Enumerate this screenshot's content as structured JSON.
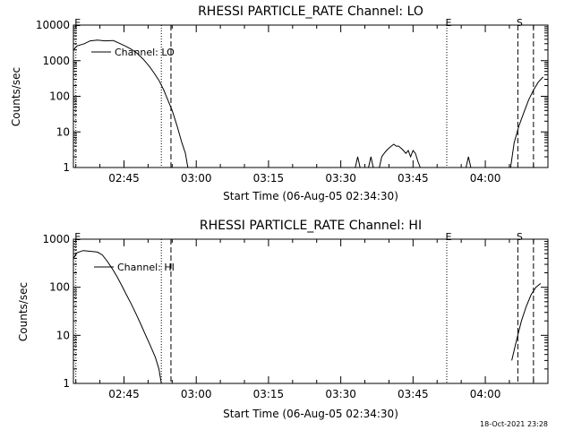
{
  "footer": {
    "timestamp": "18-Oct-2021 23:28"
  },
  "chart_data": [
    {
      "type": "line",
      "title": "RHESSI PARTICLE_RATE Channel: LO",
      "xlabel": "Start Time (06-Aug-05 02:34:30)",
      "ylabel": "Counts/sec",
      "y_scale": "log",
      "ylim": [
        1,
        10000
      ],
      "xlim": [
        "02:34:30",
        "04:13:00"
      ],
      "x_ticks": [
        "02:45",
        "03:00",
        "03:15",
        "03:30",
        "03:45",
        "04:00"
      ],
      "y_ticks": [
        "1",
        "10",
        "100",
        "1000",
        "10000"
      ],
      "legend": {
        "label": "Channel: LO",
        "placement": "top-left"
      },
      "markers": [
        {
          "label": "E",
          "time": "02:35:00",
          "style": "dotted"
        },
        {
          "label": "",
          "time": "02:52:45",
          "style": "dotted"
        },
        {
          "label": "",
          "time": "02:54:45",
          "style": "dashed"
        },
        {
          "label": "E",
          "time": "03:52:00",
          "style": "dotted"
        },
        {
          "label": "S",
          "time": "04:06:45",
          "style": "dashed"
        },
        {
          "label": "",
          "time": "04:10:00",
          "style": "dashed"
        }
      ],
      "series": [
        {
          "segments": [
            [
              [
                "02:34:30",
                2000
              ],
              [
                "02:35:15",
                2600
              ],
              [
                "02:36:45",
                3000
              ],
              [
                "02:38:00",
                3600
              ],
              [
                "02:39:30",
                3800
              ],
              [
                "02:41:00",
                3600
              ],
              [
                "02:42:45",
                3700
              ],
              [
                "02:44:00",
                3100
              ],
              [
                "02:45:15",
                2600
              ],
              [
                "02:46:30",
                2100
              ],
              [
                "02:47:45",
                1600
              ],
              [
                "02:49:00",
                1100
              ],
              [
                "02:50:15",
                700
              ],
              [
                "02:51:15",
                450
              ],
              [
                "02:52:15",
                280
              ],
              [
                "02:53:15",
                150
              ],
              [
                "02:54:00",
                85
              ],
              [
                "02:55:00",
                40
              ],
              [
                "02:56:00",
                15
              ],
              [
                "02:57:00",
                5
              ],
              [
                "02:57:45",
                2.5
              ],
              [
                "02:58:15",
                1
              ]
            ],
            [
              [
                "03:33:00",
                1
              ],
              [
                "03:33:30",
                2
              ],
              [
                "03:34:00",
                1
              ]
            ],
            [
              [
                "03:35:45",
                1
              ],
              [
                "03:36:15",
                2
              ],
              [
                "03:36:45",
                1
              ]
            ],
            [
              [
                "03:38:00",
                1
              ],
              [
                "03:38:30",
                2
              ],
              [
                "03:39:00",
                2.5
              ],
              [
                "03:39:30",
                3
              ],
              [
                "03:40:00",
                3.5
              ],
              [
                "03:40:30",
                4
              ],
              [
                "03:41:00",
                4.5
              ],
              [
                "03:41:30",
                4
              ],
              [
                "03:42:00",
                4
              ],
              [
                "03:42:30",
                3.5
              ],
              [
                "03:43:00",
                3
              ],
              [
                "03:43:30",
                2.5
              ],
              [
                "03:44:00",
                3
              ],
              [
                "03:44:30",
                2
              ],
              [
                "03:45:00",
                3
              ],
              [
                "03:45:30",
                2.5
              ],
              [
                "03:46:00",
                1.5
              ],
              [
                "03:46:30",
                1
              ]
            ],
            [
              [
                "03:56:00",
                1
              ],
              [
                "03:56:30",
                2
              ],
              [
                "03:57:00",
                1
              ]
            ],
            [
              [
                "04:05:15",
                1
              ],
              [
                "04:06:00",
                5
              ],
              [
                "04:07:00",
                15
              ],
              [
                "04:08:00",
                35
              ],
              [
                "04:09:00",
                80
              ],
              [
                "04:10:00",
                150
              ],
              [
                "04:11:00",
                250
              ],
              [
                "04:12:00",
                350
              ]
            ]
          ]
        }
      ]
    },
    {
      "type": "line",
      "title": "RHESSI PARTICLE_RATE Channel: HI",
      "xlabel": "Start Time (06-Aug-05 02:34:30)",
      "ylabel": "Counts/sec",
      "y_scale": "log",
      "ylim": [
        1,
        1000
      ],
      "xlim": [
        "02:34:30",
        "04:13:00"
      ],
      "x_ticks": [
        "02:45",
        "03:00",
        "03:15",
        "03:30",
        "03:45",
        "04:00"
      ],
      "y_ticks": [
        "1",
        "10",
        "100",
        "1000"
      ],
      "legend": {
        "label": "Channel: HI",
        "placement": "top-left"
      },
      "markers": [
        {
          "label": "E",
          "time": "02:35:00",
          "style": "dotted"
        },
        {
          "label": "",
          "time": "02:52:45",
          "style": "dotted"
        },
        {
          "label": "",
          "time": "02:54:45",
          "style": "dashed"
        },
        {
          "label": "E",
          "time": "03:52:00",
          "style": "dotted"
        },
        {
          "label": "S",
          "time": "04:06:45",
          "style": "dashed"
        },
        {
          "label": "",
          "time": "04:10:00",
          "style": "dashed"
        }
      ],
      "series": [
        {
          "segments": [
            [
              [
                "02:34:30",
                400
              ],
              [
                "02:35:15",
                520
              ],
              [
                "02:36:30",
                580
              ],
              [
                "02:38:00",
                560
              ],
              [
                "02:39:30",
                540
              ],
              [
                "02:40:30",
                470
              ],
              [
                "02:41:30",
                350
              ],
              [
                "02:42:30",
                250
              ],
              [
                "02:43:30",
                170
              ],
              [
                "02:44:30",
                110
              ],
              [
                "02:45:30",
                70
              ],
              [
                "02:46:30",
                45
              ],
              [
                "02:47:30",
                28
              ],
              [
                "02:48:30",
                17
              ],
              [
                "02:49:30",
                10
              ],
              [
                "02:50:30",
                6
              ],
              [
                "02:51:30",
                3.5
              ],
              [
                "02:52:15",
                2
              ],
              [
                "02:52:45",
                1
              ]
            ],
            [
              [
                "04:05:30",
                3
              ],
              [
                "04:06:30",
                8
              ],
              [
                "04:07:30",
                20
              ],
              [
                "04:08:30",
                40
              ],
              [
                "04:09:30",
                70
              ],
              [
                "04:10:30",
                100
              ],
              [
                "04:11:30",
                120
              ]
            ]
          ]
        }
      ]
    }
  ]
}
